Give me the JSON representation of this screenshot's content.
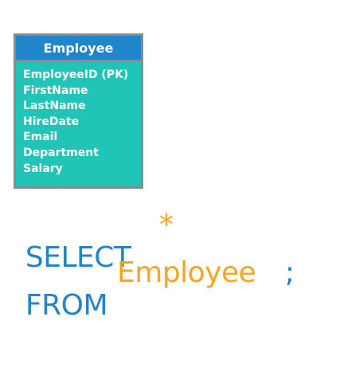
{
  "entity": {
    "name": "Employee",
    "header_color": "#1f86cc",
    "body_color": "#23c4b8",
    "border_color": "#8a8a8a",
    "fields": [
      "EmployeeID (PK)",
      "FirstName",
      "LastName",
      "HireDate",
      "Email",
      "Department",
      "Salary"
    ]
  },
  "query": {
    "select_keyword": "SELECT",
    "columns": "*",
    "from_keyword": "FROM",
    "table": "Employee",
    "terminator": ";",
    "keyword_color": "#2385c6",
    "identifier_color": "#f6a623"
  }
}
